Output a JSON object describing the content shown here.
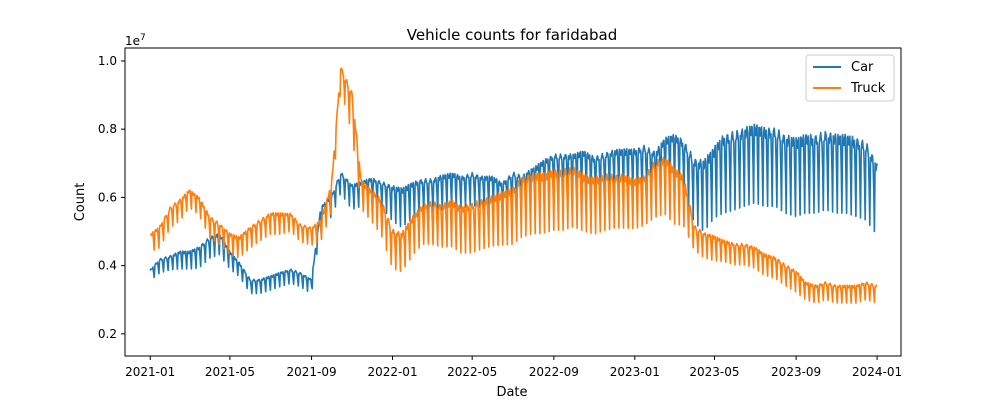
{
  "chart_data": {
    "type": "line",
    "title": "Vehicle counts for faridabad",
    "xlabel": "Date",
    "ylabel": "Count",
    "y_multiplier_label": "1e7",
    "y_scale": 10000000,
    "xlim": [
      "2020-11-24",
      "2024-02-06"
    ],
    "ylim": [
      1350000,
      10380000
    ],
    "x_ticks": [
      {
        "date": "2021-01-01",
        "label": "2021-01"
      },
      {
        "date": "2021-05-01",
        "label": "2021-05"
      },
      {
        "date": "2021-09-01",
        "label": "2021-09"
      },
      {
        "date": "2022-01-01",
        "label": "2022-01"
      },
      {
        "date": "2022-05-01",
        "label": "2022-05"
      },
      {
        "date": "2022-09-01",
        "label": "2022-09"
      },
      {
        "date": "2023-01-01",
        "label": "2023-01"
      },
      {
        "date": "2023-05-01",
        "label": "2023-05"
      },
      {
        "date": "2023-09-01",
        "label": "2023-09"
      },
      {
        "date": "2024-01-01",
        "label": "2024-01"
      }
    ],
    "y_ticks": [
      {
        "value": 2000000,
        "label": "0.2"
      },
      {
        "value": 4000000,
        "label": "0.4"
      },
      {
        "value": 6000000,
        "label": "0.6"
      },
      {
        "value": 8000000,
        "label": "0.8"
      },
      {
        "value": 10000000,
        "label": "1.0"
      }
    ],
    "grid": false,
    "legend_position": "top-right",
    "series": [
      {
        "name": "Car",
        "color": "#1f77b4",
        "x": [
          "2021-01-01",
          "2021-01-15",
          "2021-02-01",
          "2021-02-15",
          "2021-03-01",
          "2021-03-15",
          "2021-04-01",
          "2021-04-15",
          "2021-05-01",
          "2021-05-15",
          "2021-06-01",
          "2021-06-15",
          "2021-07-01",
          "2021-07-15",
          "2021-08-01",
          "2021-08-15",
          "2021-09-01",
          "2021-09-15",
          "2021-10-01",
          "2021-10-15",
          "2021-11-01",
          "2021-11-15",
          "2021-12-01",
          "2021-12-15",
          "2022-01-01",
          "2022-01-15",
          "2022-02-01",
          "2022-02-15",
          "2022-03-01",
          "2022-03-15",
          "2022-04-01",
          "2022-04-15",
          "2022-05-01",
          "2022-05-15",
          "2022-06-01",
          "2022-06-15",
          "2022-07-01",
          "2022-07-15",
          "2022-08-01",
          "2022-08-15",
          "2022-09-01",
          "2022-09-15",
          "2022-10-01",
          "2022-10-15",
          "2022-11-01",
          "2022-11-15",
          "2022-12-01",
          "2022-12-15",
          "2023-01-01",
          "2023-01-15",
          "2023-02-01",
          "2023-02-15",
          "2023-03-01",
          "2023-03-15",
          "2023-04-01",
          "2023-04-15",
          "2023-05-01",
          "2023-05-15",
          "2023-06-01",
          "2023-06-15",
          "2023-07-01",
          "2023-07-15",
          "2023-08-01",
          "2023-08-15",
          "2023-09-01",
          "2023-09-15",
          "2023-10-01",
          "2023-10-15",
          "2023-11-01",
          "2023-11-15",
          "2023-12-01",
          "2023-12-15",
          "2024-01-01"
        ],
        "values": [
          3800000,
          4100000,
          4200000,
          4300000,
          4300000,
          4400000,
          4700000,
          4800000,
          4300000,
          4000000,
          3500000,
          3500000,
          3600000,
          3700000,
          3800000,
          3700000,
          3500000,
          5600000,
          5900000,
          6600000,
          6200000,
          6300000,
          6400000,
          6300000,
          6100000,
          6000000,
          6200000,
          6300000,
          6300000,
          6400000,
          6500000,
          6400000,
          6500000,
          6400000,
          6400000,
          6200000,
          6500000,
          6400000,
          6600000,
          6800000,
          7000000,
          7000000,
          7000000,
          7100000,
          6900000,
          7000000,
          7100000,
          7100000,
          7100000,
          7200000,
          7000000,
          7400000,
          7500000,
          7300000,
          6700000,
          6600000,
          7000000,
          7300000,
          7400000,
          7500000,
          7600000,
          7500000,
          7500000,
          7300000,
          7200000,
          7300000,
          7300000,
          7400000,
          7300000,
          7300000,
          7200000,
          7100000,
          6500000
        ],
        "amplitude": [
          150000,
          200000,
          200000,
          250000,
          250000,
          300000,
          300000,
          300000,
          250000,
          200000,
          200000,
          200000,
          200000,
          200000,
          200000,
          200000,
          200000,
          250000,
          300000,
          300000,
          350000,
          350000,
          350000,
          350000,
          500000,
          550000,
          500000,
          500000,
          500000,
          500000,
          450000,
          450000,
          450000,
          450000,
          450000,
          450000,
          500000,
          500000,
          550000,
          550000,
          550000,
          550000,
          550000,
          550000,
          600000,
          600000,
          600000,
          650000,
          650000,
          650000,
          700000,
          700000,
          700000,
          800000,
          900000,
          1000000,
          1000000,
          1100000,
          1100000,
          1100000,
          1100000,
          1100000,
          1100000,
          1100000,
          1100000,
          1100000,
          1100000,
          1100000,
          1100000,
          1100000,
          1100000,
          1100000,
          1000000
        ]
      },
      {
        "name": "Truck",
        "color": "#ff7f0e",
        "x": [
          "2021-01-01",
          "2021-01-15",
          "2021-02-01",
          "2021-02-15",
          "2021-03-01",
          "2021-03-15",
          "2021-04-01",
          "2021-04-15",
          "2021-05-01",
          "2021-05-15",
          "2021-06-01",
          "2021-06-15",
          "2021-07-01",
          "2021-07-15",
          "2021-08-01",
          "2021-08-15",
          "2021-09-01",
          "2021-09-15",
          "2021-10-01",
          "2021-10-15",
          "2021-11-01",
          "2021-11-15",
          "2021-12-01",
          "2021-12-15",
          "2022-01-01",
          "2022-01-15",
          "2022-02-01",
          "2022-02-15",
          "2022-03-01",
          "2022-03-15",
          "2022-04-01",
          "2022-04-15",
          "2022-05-01",
          "2022-05-15",
          "2022-06-01",
          "2022-06-15",
          "2022-07-01",
          "2022-07-15",
          "2022-08-01",
          "2022-08-15",
          "2022-09-01",
          "2022-09-15",
          "2022-10-01",
          "2022-10-15",
          "2022-11-01",
          "2022-11-15",
          "2022-12-01",
          "2022-12-15",
          "2023-01-01",
          "2023-01-15",
          "2023-02-01",
          "2023-02-15",
          "2023-03-01",
          "2023-03-15",
          "2023-04-01",
          "2023-04-15",
          "2023-05-01",
          "2023-05-15",
          "2023-06-01",
          "2023-06-15",
          "2023-07-01",
          "2023-07-15",
          "2023-08-01",
          "2023-08-15",
          "2023-09-01",
          "2023-09-15",
          "2023-10-01",
          "2023-10-15",
          "2023-11-01",
          "2023-11-15",
          "2023-12-01",
          "2023-12-15",
          "2024-01-01"
        ],
        "values": [
          4800000,
          5000000,
          5600000,
          5800000,
          6100000,
          5900000,
          5300000,
          5100000,
          4800000,
          4700000,
          5000000,
          5200000,
          5400000,
          5400000,
          5400000,
          5100000,
          5000000,
          5200000,
          6200000,
          9700000,
          8800000,
          6300000,
          6000000,
          5700000,
          4800000,
          4700000,
          5200000,
          5500000,
          5600000,
          5500000,
          5600000,
          5400000,
          5500000,
          5600000,
          5700000,
          5800000,
          5900000,
          6200000,
          6300000,
          6300000,
          6400000,
          6400000,
          6500000,
          6300000,
          6200000,
          6300000,
          6300000,
          6300000,
          6200000,
          6300000,
          6700000,
          6800000,
          6500000,
          6300000,
          5000000,
          4800000,
          4700000,
          4600000,
          4500000,
          4500000,
          4400000,
          4200000,
          4100000,
          3900000,
          3700000,
          3400000,
          3300000,
          3400000,
          3300000,
          3300000,
          3300000,
          3400000,
          3300000
        ],
        "amplitude": [
          250000,
          300000,
          300000,
          300000,
          250000,
          250000,
          300000,
          300000,
          300000,
          300000,
          300000,
          300000,
          300000,
          300000,
          250000,
          250000,
          250000,
          300000,
          400000,
          300000,
          600000,
          400000,
          450000,
          500000,
          550000,
          550000,
          550000,
          550000,
          600000,
          600000,
          650000,
          650000,
          700000,
          700000,
          700000,
          750000,
          800000,
          850000,
          850000,
          850000,
          850000,
          850000,
          850000,
          800000,
          800000,
          800000,
          750000,
          750000,
          700000,
          700000,
          800000,
          800000,
          800000,
          700000,
          350000,
          350000,
          350000,
          300000,
          300000,
          300000,
          300000,
          300000,
          300000,
          300000,
          300000,
          250000,
          250000,
          250000,
          250000,
          250000,
          250000,
          250000,
          250000
        ]
      }
    ]
  }
}
